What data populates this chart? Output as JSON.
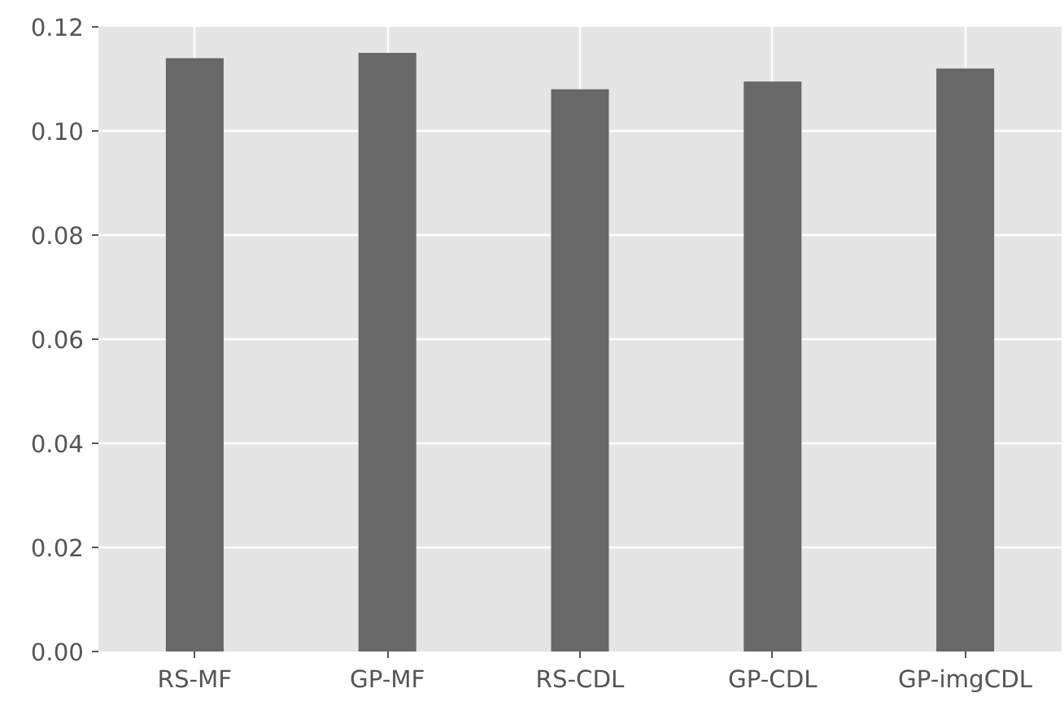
{
  "chart_data": {
    "type": "bar",
    "categories": [
      "RS-MF",
      "GP-MF",
      "RS-CDL",
      "GP-CDL",
      "GP-imgCDL"
    ],
    "values": [
      0.114,
      0.115,
      0.108,
      0.1095,
      0.112
    ],
    "color": "#686868",
    "ylim": [
      0,
      0.12
    ],
    "yticks": [
      {
        "value": 0,
        "label": "0.00"
      },
      {
        "value": 0.02,
        "label": "0.02"
      },
      {
        "value": 0.04,
        "label": "0.04"
      },
      {
        "value": 0.06,
        "label": "0.06"
      },
      {
        "value": 0.08,
        "label": "0.08"
      },
      {
        "value": 0.1,
        "label": "0.10"
      },
      {
        "value": 0.12,
        "label": "0.12"
      }
    ],
    "grid": true
  }
}
